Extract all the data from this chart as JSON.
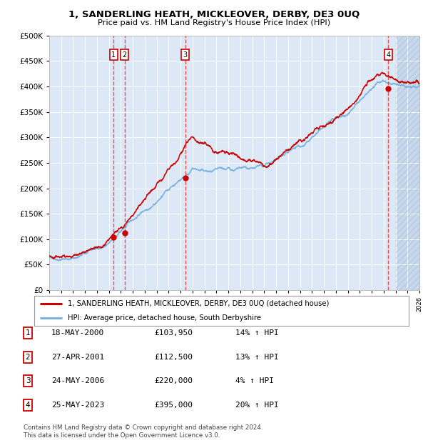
{
  "title": "1, SANDERLING HEATH, MICKLEOVER, DERBY, DE3 0UQ",
  "subtitle": "Price paid vs. HM Land Registry's House Price Index (HPI)",
  "legend_line1": "1, SANDERLING HEATH, MICKLEOVER, DERBY, DE3 0UQ (detached house)",
  "legend_line2": "HPI: Average price, detached house, South Derbyshire",
  "footer_line1": "Contains HM Land Registry data © Crown copyright and database right 2024.",
  "footer_line2": "This data is licensed under the Open Government Licence v3.0.",
  "transactions": [
    {
      "num": 1,
      "date": "18-MAY-2000",
      "price": 103950,
      "pct": "14%",
      "year": 2000.38
    },
    {
      "num": 2,
      "date": "27-APR-2001",
      "price": 112500,
      "pct": "13%",
      "year": 2001.32
    },
    {
      "num": 3,
      "date": "24-MAY-2006",
      "price": 220000,
      "pct": "4%",
      "year": 2006.39
    },
    {
      "num": 4,
      "date": "25-MAY-2023",
      "price": 395000,
      "pct": "20%",
      "year": 2023.39
    }
  ],
  "hpi_color": "#7ab3e0",
  "price_color": "#cc0000",
  "marker_color": "#cc0000",
  "vline_color": "#ee3333",
  "background_color": "#dce8f5",
  "ylim": [
    0,
    500000
  ],
  "yticks": [
    0,
    50000,
    100000,
    150000,
    200000,
    250000,
    300000,
    350000,
    400000,
    450000,
    500000
  ],
  "xmin": 1995,
  "xmax": 2026,
  "seed": 42
}
